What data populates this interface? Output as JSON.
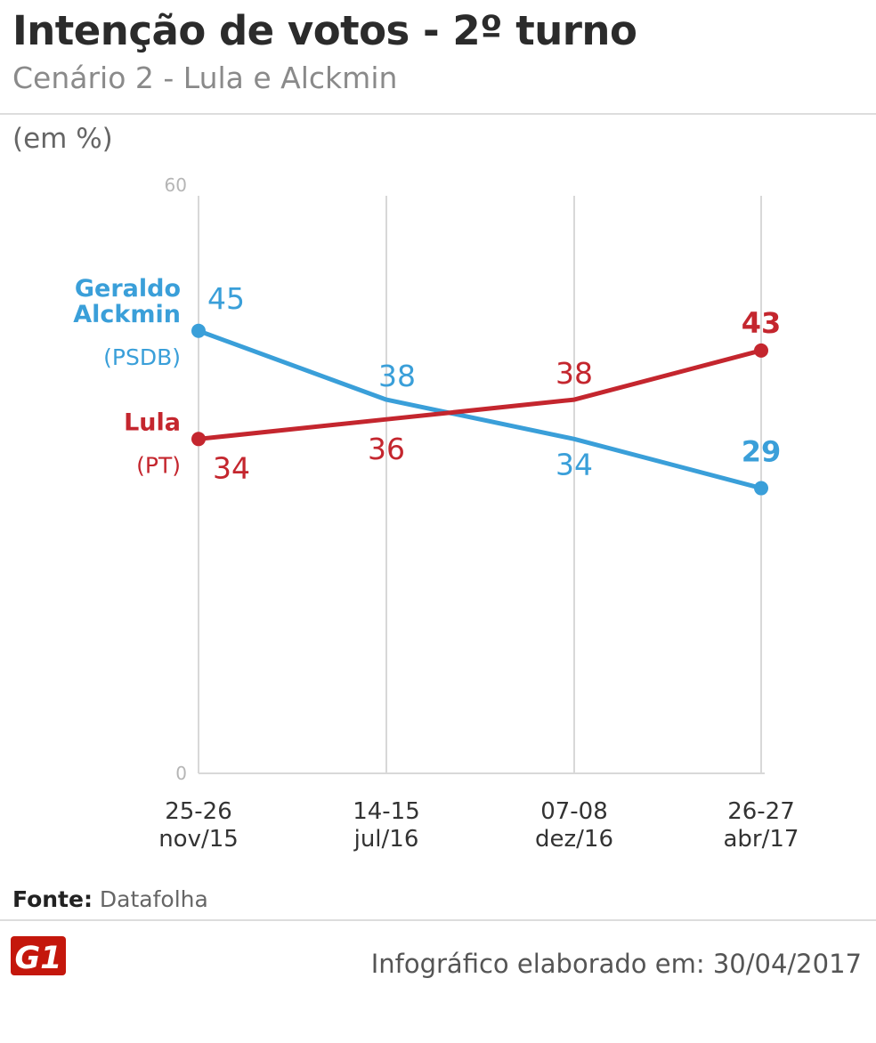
{
  "header": {
    "title": "Intenção de votos - 2º turno",
    "subtitle": "Cenário 2 - Lula e Alckmin",
    "unit": "(em %)"
  },
  "chart_data": {
    "type": "line",
    "title": "Intenção de votos - 2º turno",
    "subtitle": "Cenário 2 - Lula e Alckmin",
    "ylabel": "(em %)",
    "ylim": [
      0,
      60
    ],
    "y_ticks": [
      "0",
      "60"
    ],
    "categories": [
      [
        "25-26",
        "nov/15"
      ],
      [
        "14-15",
        "jul/16"
      ],
      [
        "07-08",
        "dez/16"
      ],
      [
        "26-27",
        "abr/17"
      ]
    ],
    "series": [
      {
        "name_lines": [
          "Geraldo",
          "Alckmin"
        ],
        "party": "(PSDB)",
        "color": "#3a9fd9",
        "values": [
          45,
          38,
          34,
          29
        ],
        "labels": [
          "45",
          "38",
          "34",
          "29"
        ]
      },
      {
        "name_lines": [
          "Lula"
        ],
        "party": "(PT)",
        "color": "#c4262e",
        "values": [
          34,
          36,
          38,
          43
        ],
        "labels": [
          "34",
          "36",
          "38",
          "43"
        ]
      }
    ]
  },
  "footer": {
    "source_label": "Fonte:",
    "source_value": "Datafolha",
    "logo_text": "G1",
    "credit": "Infográfico elaborado em: 30/04/2017"
  },
  "colors": {
    "title": "#2b2b2b",
    "subtitle": "#8a8a8a",
    "logo": "#c4170c",
    "grid": "#d8d8d8"
  }
}
